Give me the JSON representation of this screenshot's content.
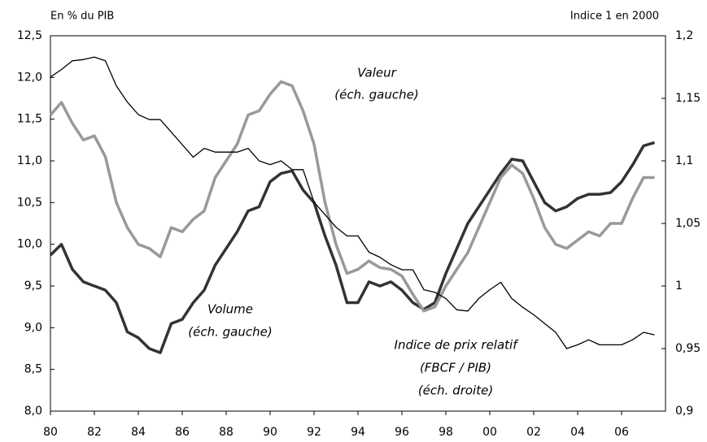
{
  "chart_data": {
    "type": "line",
    "y_label": "En % du PIB",
    "y2_label": "Indice 1 en 2000",
    "annotations": [
      "Valeur",
      "(éch. gauche)",
      "Volume",
      "(éch. gauche)",
      "Indice de prix relatif",
      "(FBCF / PIB)",
      "(éch. droite)"
    ],
    "x": [
      1980,
      1980.5,
      1981,
      1981.5,
      1982,
      1982.5,
      1983,
      1983.5,
      1984,
      1984.5,
      1985,
      1985.5,
      1986,
      1986.5,
      1987,
      1987.5,
      1988,
      1988.5,
      1989,
      1989.5,
      1990,
      1990.5,
      1991,
      1991.5,
      1992,
      1992.5,
      1993,
      1993.5,
      1994,
      1994.5,
      1995,
      1995.5,
      1996,
      1996.5,
      1997,
      1997.5,
      1998,
      1998.5,
      1999,
      1999.5,
      2000,
      2000.5,
      2001,
      2001.5,
      2002,
      2002.5,
      2003,
      2003.5,
      2004,
      2004.5,
      2005,
      2005.5,
      2006,
      2006.5,
      2007,
      2007.5
    ],
    "xlim": [
      1980,
      2008
    ],
    "xticks": [
      {
        "value": 1980,
        "label": "80"
      },
      {
        "value": 1982,
        "label": "82"
      },
      {
        "value": 1984,
        "label": "84"
      },
      {
        "value": 1986,
        "label": "86"
      },
      {
        "value": 1988,
        "label": "88"
      },
      {
        "value": 1990,
        "label": "90"
      },
      {
        "value": 1992,
        "label": "92"
      },
      {
        "value": 1994,
        "label": "94"
      },
      {
        "value": 1996,
        "label": "96"
      },
      {
        "value": 1998,
        "label": "98"
      },
      {
        "value": 2000,
        "label": "00"
      },
      {
        "value": 2002,
        "label": "02"
      },
      {
        "value": 2004,
        "label": "04"
      },
      {
        "value": 2006,
        "label": "06"
      }
    ],
    "ylim": [
      8,
      12.5
    ],
    "yticks": [
      {
        "value": 8,
        "label": "8,0"
      },
      {
        "value": 8.5,
        "label": "8,5"
      },
      {
        "value": 9,
        "label": "9,0"
      },
      {
        "value": 9.5,
        "label": "9,5"
      },
      {
        "value": 10,
        "label": "10,0"
      },
      {
        "value": 10.5,
        "label": "10,5"
      },
      {
        "value": 11,
        "label": "11,0"
      },
      {
        "value": 11.5,
        "label": "11,5"
      },
      {
        "value": 12,
        "label": "12,0"
      },
      {
        "value": 12.5,
        "label": "12,5"
      }
    ],
    "y2lim": [
      0.9,
      1.2
    ],
    "y2ticks": [
      {
        "value": 0.9,
        "label": "0,9"
      },
      {
        "value": 0.95,
        "label": "0,95"
      },
      1,
      {
        "value": 1.05,
        "label": "1,05"
      },
      {
        "value": 1.1,
        "label": "1,1"
      },
      {
        "value": 1.15,
        "label": "1,15"
      },
      {
        "value": 1.2,
        "label": "1,2"
      }
    ],
    "series": [
      {
        "name": "Volume",
        "color": "#333333",
        "values": [
          9.87,
          10.0,
          9.7,
          9.55,
          9.5,
          9.45,
          9.3,
          8.95,
          8.88,
          8.75,
          8.7,
          9.05,
          9.1,
          9.3,
          9.45,
          9.75,
          9.95,
          10.15,
          10.4,
          10.45,
          10.75,
          10.85,
          10.88,
          10.65,
          10.5,
          10.1,
          9.75,
          9.3,
          9.3,
          9.55,
          9.5,
          9.55,
          9.45,
          9.3,
          9.22,
          9.3,
          9.65,
          9.95,
          10.25,
          10.45,
          10.65,
          10.85,
          11.02,
          11.0,
          10.75,
          10.5,
          10.4,
          10.45,
          10.55,
          10.6,
          10.6,
          10.62,
          10.75,
          10.95,
          11.18,
          11.22
        ]
      },
      {
        "name": "Valeur",
        "color": "#999999",
        "values": [
          11.55,
          11.7,
          11.45,
          11.25,
          11.3,
          11.05,
          10.5,
          10.2,
          10.0,
          9.95,
          9.85,
          10.2,
          10.15,
          10.3,
          10.4,
          10.8,
          11.0,
          11.2,
          11.55,
          11.6,
          11.8,
          11.95,
          11.9,
          11.6,
          11.2,
          10.5,
          10.0,
          9.65,
          9.7,
          9.8,
          9.72,
          9.7,
          9.62,
          9.4,
          9.2,
          9.25,
          9.5,
          9.7,
          9.9,
          10.2,
          10.5,
          10.8,
          10.95,
          10.85,
          10.55,
          10.2,
          10.0,
          9.95,
          10.05,
          10.15,
          10.1,
          10.25,
          10.25,
          10.55,
          10.8,
          10.8
        ]
      },
      {
        "name": "Indice de prix relatif",
        "color": "#000000",
        "axis": "y2",
        "values": [
          1.167,
          1.173,
          1.18,
          1.181,
          1.183,
          1.18,
          1.16,
          1.147,
          1.137,
          1.133,
          1.133,
          1.123,
          1.113,
          1.103,
          1.11,
          1.107,
          1.107,
          1.107,
          1.11,
          1.1,
          1.097,
          1.1,
          1.093,
          1.093,
          1.067,
          1.057,
          1.047,
          1.04,
          1.04,
          1.027,
          1.023,
          1.017,
          1.013,
          1.013,
          0.997,
          0.995,
          0.99,
          0.981,
          0.98,
          0.99,
          0.997,
          1.003,
          0.99,
          0.983,
          0.977,
          0.97,
          0.963,
          0.95,
          0.953,
          0.957,
          0.953,
          0.953,
          0.953,
          0.957,
          0.963,
          0.961
        ]
      }
    ]
  }
}
